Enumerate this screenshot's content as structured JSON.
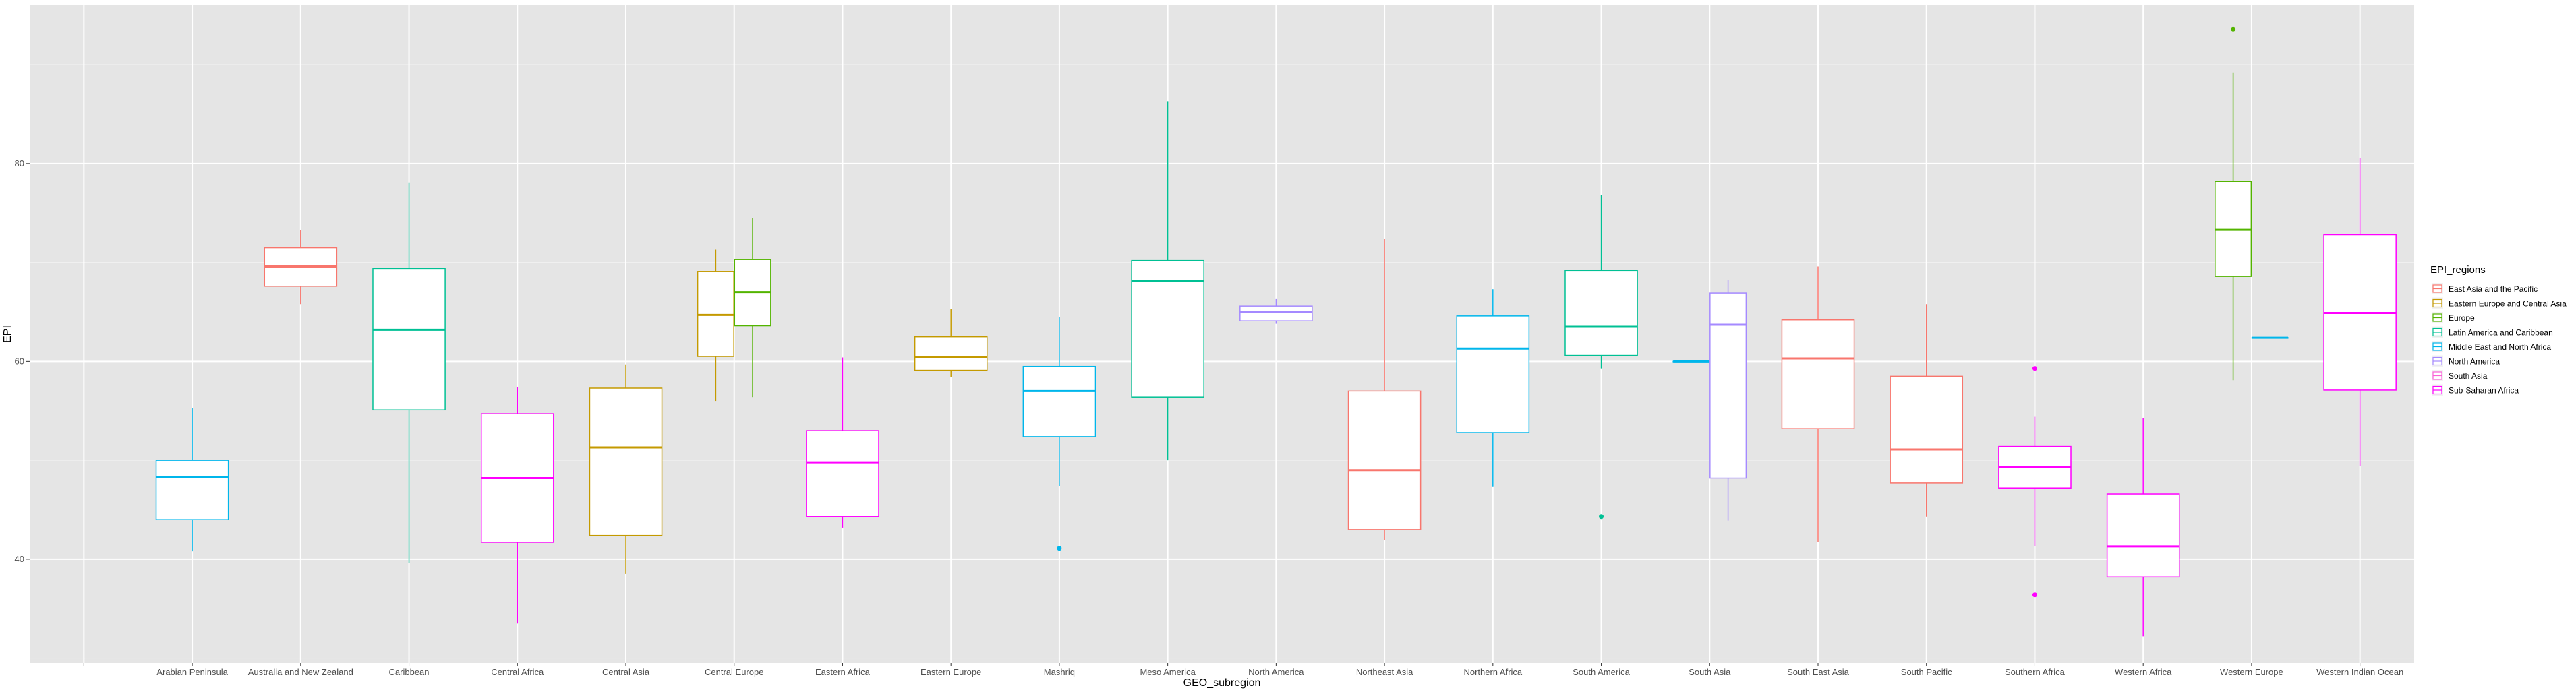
{
  "chart_data": {
    "type": "boxplot",
    "xlabel": "GEO_subregion",
    "ylabel": "EPI",
    "ylim": [
      29.5,
      96
    ],
    "yticks": [
      40,
      60,
      80
    ],
    "grid": true,
    "legend_position": "right",
    "legend": {
      "title": "EPI_regions",
      "entries": [
        {
          "name": "East Asia and the Pacific",
          "color": "#F8766D"
        },
        {
          "name": "Eastern Europe and Central Asia",
          "color": "#C49A00"
        },
        {
          "name": "Europe",
          "color": "#53B400"
        },
        {
          "name": "Latin America and Caribbean",
          "color": "#00C094"
        },
        {
          "name": "Middle East and North Africa",
          "color": "#00B6EB"
        },
        {
          "name": "North America",
          "color": "#A58AFF"
        },
        {
          "name": "South Asia",
          "color": "#FB61D7"
        },
        {
          "name": "Sub-Saharan Africa",
          "color": "#FF00FF"
        }
      ]
    },
    "categories": [
      "",
      "Arabian Peninsula",
      "Australia and New Zealand",
      "Caribbean",
      "Central Africa",
      "Central Asia",
      "Central Europe",
      "Eastern Africa",
      "Eastern Europe",
      "Mashriq",
      "Meso America",
      "North America",
      "Northeast Asia",
      "Northern Africa",
      "South America",
      "South Asia",
      "South East Asia",
      "South Pacific",
      "Southern Africa",
      "Western Africa",
      "Western Europe",
      "Western Indian Ocean"
    ],
    "boxes": [
      {
        "category": "Arabian Peninsula",
        "region": "Middle East and North Africa",
        "min": 40.8,
        "q1": 44.0,
        "median": 48.3,
        "q3": 50.0,
        "max": 55.3,
        "outliers": []
      },
      {
        "category": "Australia and New Zealand",
        "region": "East Asia and the Pacific",
        "min": 65.8,
        "q1": 67.6,
        "median": 69.6,
        "q3": 71.5,
        "max": 73.3,
        "outliers": []
      },
      {
        "category": "Caribbean",
        "region": "Latin America and Caribbean",
        "min": 39.6,
        "q1": 55.1,
        "median": 63.2,
        "q3": 69.4,
        "max": 78.1,
        "outliers": []
      },
      {
        "category": "Central Africa",
        "region": "Sub-Saharan Africa",
        "min": 33.5,
        "q1": 41.7,
        "median": 48.2,
        "q3": 54.7,
        "max": 57.4,
        "outliers": []
      },
      {
        "category": "Central Asia",
        "region": "Eastern Europe and Central Asia",
        "min": 38.5,
        "q1": 42.4,
        "median": 51.3,
        "q3": 57.3,
        "max": 59.7,
        "outliers": []
      },
      {
        "category": "Central Europe",
        "region": "Eastern Europe and Central Asia",
        "min": 56.0,
        "q1": 60.5,
        "median": 64.7,
        "q3": 69.1,
        "max": 71.3,
        "outliers": []
      },
      {
        "category": "Central Europe",
        "region": "Europe",
        "min": 56.4,
        "q1": 63.6,
        "median": 67.0,
        "q3": 70.3,
        "max": 74.5,
        "outliers": []
      },
      {
        "category": "Eastern Africa",
        "region": "Sub-Saharan Africa",
        "min": 43.2,
        "q1": 44.3,
        "median": 49.8,
        "q3": 53.0,
        "max": 60.4,
        "outliers": []
      },
      {
        "category": "Eastern Europe",
        "region": "Eastern Europe and Central Asia",
        "min": 58.4,
        "q1": 59.1,
        "median": 60.4,
        "q3": 62.5,
        "max": 65.3,
        "outliers": []
      },
      {
        "category": "Mashriq",
        "region": "Middle East and North Africa",
        "min": 47.4,
        "q1": 52.4,
        "median": 57.0,
        "q3": 59.5,
        "max": 64.5,
        "outliers": [
          41.1
        ]
      },
      {
        "category": "Meso America",
        "region": "Latin America and Caribbean",
        "min": 50.0,
        "q1": 56.4,
        "median": 68.1,
        "q3": 70.2,
        "max": 86.3,
        "outliers": []
      },
      {
        "category": "North America",
        "region": "North America",
        "min": 63.8,
        "q1": 64.1,
        "median": 65.0,
        "q3": 65.6,
        "max": 66.3,
        "outliers": []
      },
      {
        "category": "Northeast Asia",
        "region": "East Asia and the Pacific",
        "min": 41.9,
        "q1": 43.0,
        "median": 49.0,
        "q3": 57.0,
        "max": 72.4,
        "outliers": []
      },
      {
        "category": "Northern Africa",
        "region": "Middle East and North Africa",
        "min": 47.3,
        "q1": 52.8,
        "median": 61.3,
        "q3": 64.6,
        "max": 67.3,
        "outliers": []
      },
      {
        "category": "South America",
        "region": "Latin America and Caribbean",
        "min": 59.3,
        "q1": 60.6,
        "median": 63.5,
        "q3": 69.2,
        "max": 76.8,
        "outliers": [
          44.3
        ]
      },
      {
        "category": "South Asia",
        "region": "Middle East and North Africa",
        "min": 60.0,
        "q1": 60.0,
        "median": 60.0,
        "q3": 60.0,
        "max": 60.0,
        "outliers": []
      },
      {
        "category": "South Asia",
        "region": "North America",
        "min": 43.9,
        "q1": 48.2,
        "median": 63.7,
        "q3": 66.9,
        "max": 68.2,
        "outliers": []
      },
      {
        "category": "South East Asia",
        "region": "East Asia and the Pacific",
        "min": 41.7,
        "q1": 53.2,
        "median": 60.3,
        "q3": 64.2,
        "max": 69.6,
        "outliers": []
      },
      {
        "category": "South Pacific",
        "region": "East Asia and the Pacific",
        "min": 44.3,
        "q1": 47.7,
        "median": 51.1,
        "q3": 58.5,
        "max": 65.8,
        "outliers": []
      },
      {
        "category": "Southern Africa",
        "region": "Sub-Saharan Africa",
        "min": 41.3,
        "q1": 47.2,
        "median": 49.3,
        "q3": 51.4,
        "max": 54.4,
        "outliers": [
          59.3,
          36.4
        ]
      },
      {
        "category": "Western Africa",
        "region": "Sub-Saharan Africa",
        "min": 32.2,
        "q1": 38.2,
        "median": 41.3,
        "q3": 46.6,
        "max": 54.3,
        "outliers": []
      },
      {
        "category": "Western Europe",
        "region": "Europe",
        "min": 58.1,
        "q1": 68.6,
        "median": 73.3,
        "q3": 78.2,
        "max": 89.2,
        "outliers": [
          93.6
        ]
      },
      {
        "category": "Western Europe",
        "region": "Middle East and North Africa",
        "min": 62.4,
        "q1": 62.4,
        "median": 62.4,
        "q3": 62.4,
        "max": 62.4,
        "outliers": []
      },
      {
        "category": "Western Indian Ocean",
        "region": "Sub-Saharan Africa",
        "min": 49.4,
        "q1": 57.1,
        "median": 64.9,
        "q3": 72.8,
        "max": 80.6,
        "outliers": []
      }
    ]
  }
}
